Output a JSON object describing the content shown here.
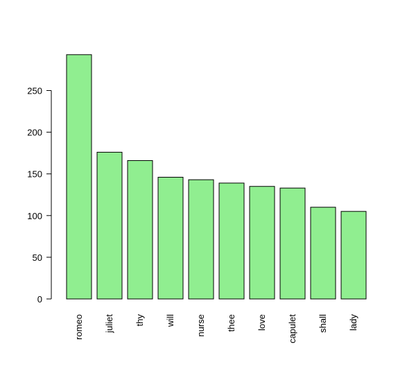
{
  "chart_data": {
    "type": "bar",
    "title": "",
    "xlabel": "",
    "ylabel": "",
    "categories": [
      "romeo",
      "juliet",
      "thy",
      "will",
      "nurse",
      "thee",
      "love",
      "capulet",
      "shall",
      "lady"
    ],
    "values": [
      293,
      176,
      166,
      146,
      143,
      139,
      135,
      133,
      110,
      105
    ],
    "ylim": [
      0,
      300
    ],
    "yticks": [
      0,
      50,
      100,
      150,
      200,
      250
    ],
    "bar_color": "#90ee90",
    "bar_border_color": "#000000",
    "x_label_orientation": "vertical",
    "grid": false,
    "legend": "none"
  }
}
